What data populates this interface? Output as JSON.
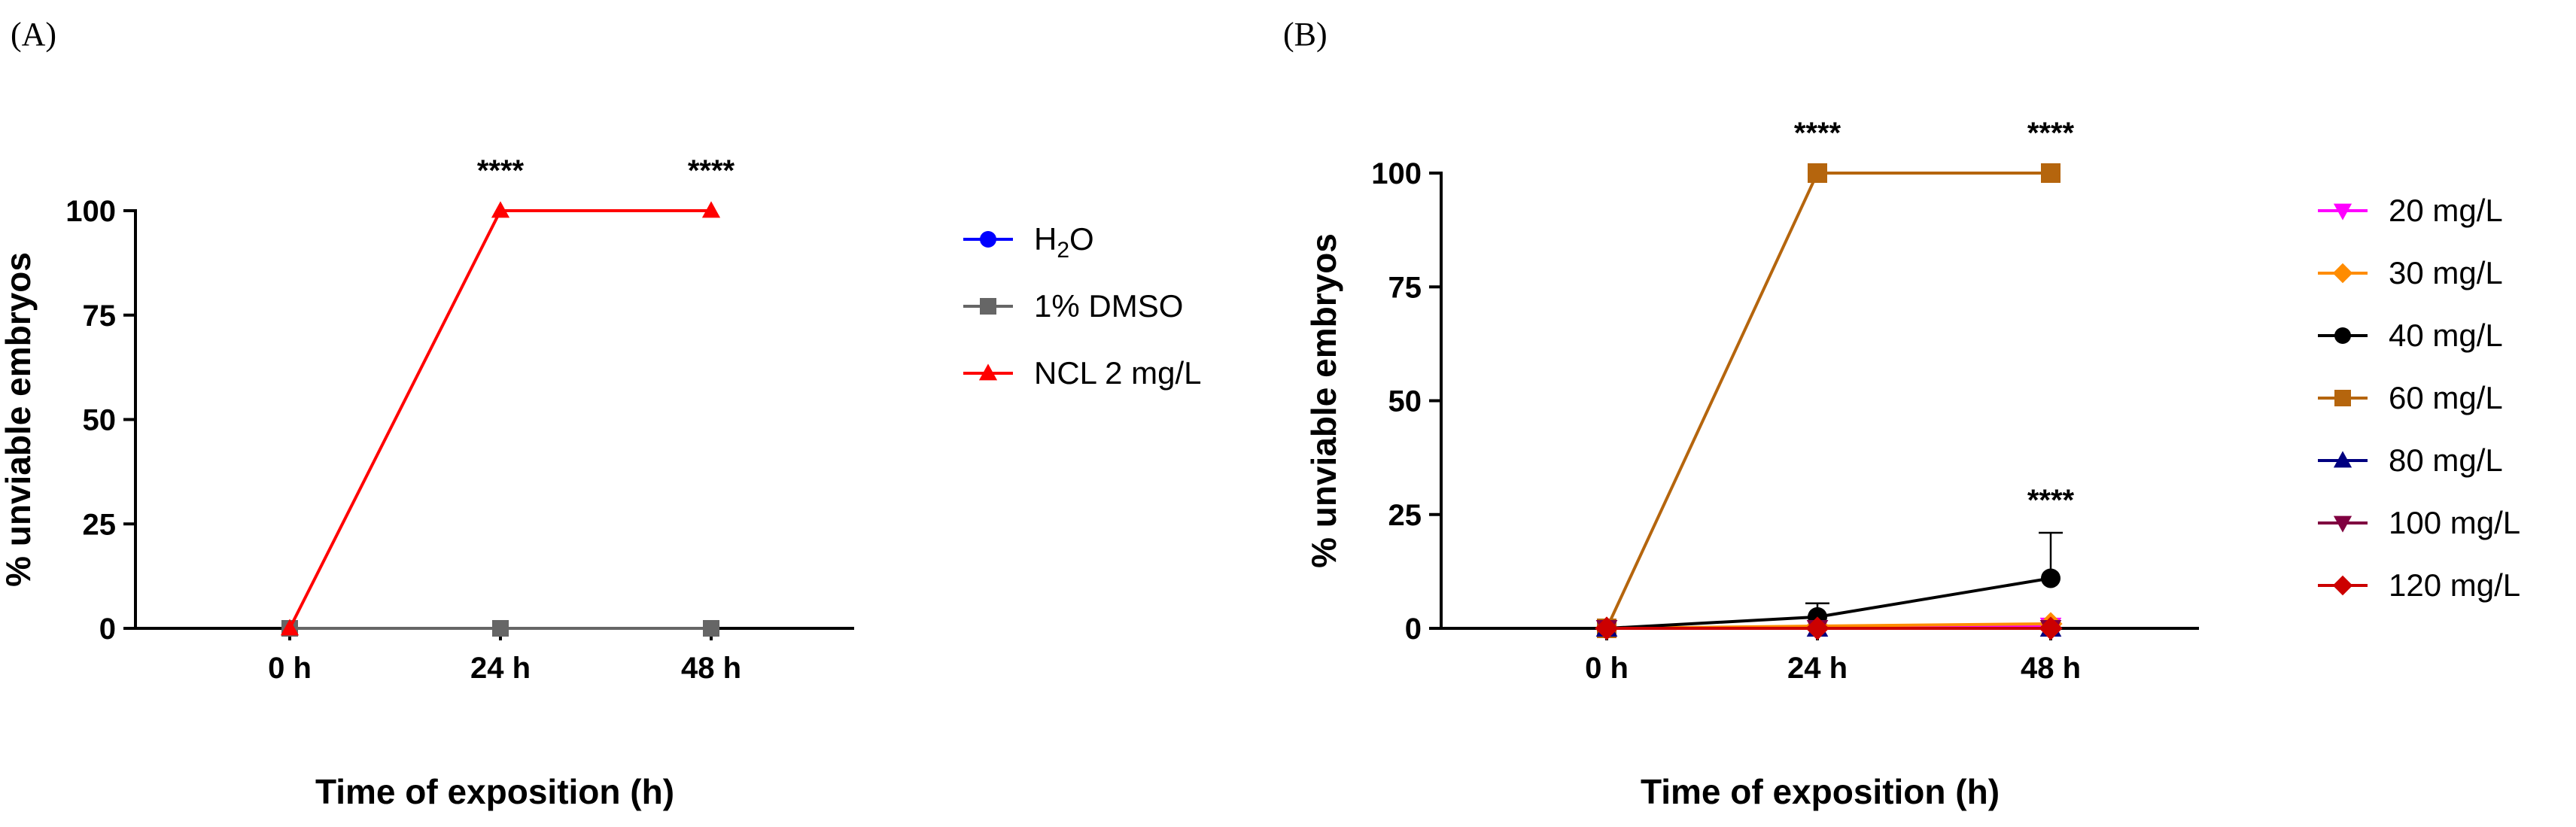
{
  "chart_data": [
    {
      "panel_label": "(A)",
      "type": "line",
      "xlabel": "Time of exposition (h)",
      "ylabel": "% unviable embryos",
      "categories": [
        "0 h",
        "24 h",
        "48 h"
      ],
      "yticks": [
        "0",
        "25",
        "50",
        "75",
        "100"
      ],
      "ylim": [
        0,
        100
      ],
      "grid": false,
      "legend_position": "right",
      "significance": [
        "",
        "****",
        "****"
      ],
      "series": [
        {
          "name": "H2O",
          "name_main": "H",
          "name_sub": "2",
          "name_tail": "O",
          "color": "#0000ff",
          "marker": "circle",
          "values": [
            0,
            0,
            0
          ]
        },
        {
          "name": "1% DMSO",
          "color": "#666666",
          "marker": "square",
          "values": [
            0,
            0,
            0
          ]
        },
        {
          "name": "NCL 2 mg/L",
          "color": "#ff0000",
          "marker": "triangle-up",
          "values": [
            0,
            100,
            100
          ]
        }
      ]
    },
    {
      "panel_label": "(B)",
      "type": "line",
      "xlabel": "Time of exposition (h)",
      "ylabel": "% unviable embryos",
      "categories": [
        "0 h",
        "24 h",
        "48 h"
      ],
      "yticks": [
        "0",
        "25",
        "50",
        "75",
        "100"
      ],
      "ylim": [
        0,
        100
      ],
      "grid": false,
      "legend_position": "right",
      "significance_top": [
        "",
        "****",
        "****"
      ],
      "significance_40": [
        "",
        "",
        "****"
      ],
      "series": [
        {
          "name": "20 mg/L",
          "color": "#ff00ff",
          "marker": "triangle-down",
          "values": [
            0,
            0,
            0.5
          ]
        },
        {
          "name": "30 mg/L",
          "color": "#ff8c00",
          "marker": "diamond",
          "values": [
            0,
            0.5,
            1
          ]
        },
        {
          "name": "40 mg/L",
          "color": "#000000",
          "marker": "circle",
          "values": [
            0,
            2.5,
            11
          ],
          "errors": [
            0,
            3,
            10
          ]
        },
        {
          "name": "60 mg/L",
          "color": "#b5650d",
          "marker": "square",
          "values": [
            0,
            100,
            100
          ]
        },
        {
          "name": "80 mg/L",
          "color": "#000080",
          "marker": "triangle-up",
          "values": [
            0,
            0,
            0
          ]
        },
        {
          "name": "100 mg/L",
          "color": "#800040",
          "marker": "triangle-down",
          "values": [
            0,
            0,
            0
          ]
        },
        {
          "name": "120 mg/L",
          "color": "#cc0000",
          "marker": "diamond",
          "values": [
            0,
            0,
            0
          ]
        }
      ]
    }
  ]
}
